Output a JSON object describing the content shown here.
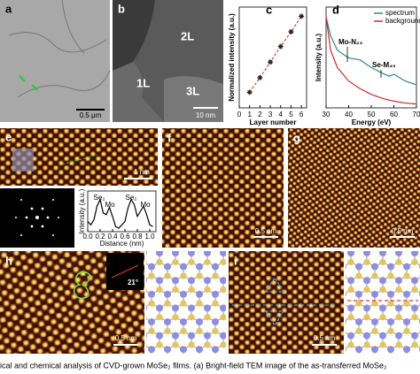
{
  "panels": [
    {
      "label": "a",
      "scale_bar": "0.5 μm"
    },
    {
      "label": "b",
      "scale_bar": "10 nm",
      "regions": [
        "2L",
        "1L",
        "3L"
      ]
    },
    {
      "label": "c"
    },
    {
      "label": "d"
    },
    {
      "label": "e",
      "scale_bar": "1 nm"
    },
    {
      "label": "f",
      "scale_bar": "0.5 nm"
    },
    {
      "label": "g",
      "scale_bar": "0.5 nm"
    },
    {
      "label": "h",
      "scale_bar": "0.5 nm",
      "angle": "21°"
    },
    {
      "label": "i",
      "scale_bar": "0.5 nm"
    }
  ],
  "chart_data": [
    {
      "type": "scatter",
      "xlabel": "Layer number",
      "ylabel": "Normalized intensity (a.u.)",
      "x": [
        1,
        2,
        3,
        4,
        5,
        6
      ],
      "values": [
        0.17,
        0.33,
        0.5,
        0.67,
        0.83,
        1.0
      ],
      "color": "#222222",
      "fit_color": "#d62728",
      "xlim": [
        0,
        6.5
      ],
      "xticks": [
        0,
        1,
        2,
        3,
        4,
        5,
        6
      ],
      "ylim": [
        0,
        1.1
      ]
    },
    {
      "type": "line",
      "xlabel": "Energy (eV)",
      "ylabel": "Intensity (a.u.)",
      "x": [
        30,
        32,
        35,
        40,
        45,
        50,
        55,
        58,
        60,
        65,
        70
      ],
      "series": [
        {
          "name": "spectrum",
          "color": "#2a8a8a",
          "values": [
            0.95,
            0.75,
            0.6,
            0.52,
            0.5,
            0.42,
            0.36,
            0.33,
            0.35,
            0.28,
            0.24
          ]
        },
        {
          "name": "background",
          "color": "#d62728",
          "values": [
            0.95,
            0.6,
            0.42,
            0.28,
            0.2,
            0.14,
            0.1,
            0.08,
            0.07,
            0.05,
            0.04
          ]
        }
      ],
      "xlim": [
        30,
        70
      ],
      "xticks": [
        30,
        40,
        50,
        60,
        70
      ],
      "ylim": [
        0,
        1.05
      ],
      "legend": "upper right",
      "annotations": [
        "Mo-N₂₃",
        "Se-M₄₅"
      ]
    },
    {
      "type": "line",
      "xlabel": "Distance (nm)",
      "ylabel": "Intensity (a.u.)",
      "x": [
        0,
        0.05,
        0.1,
        0.15,
        0.2,
        0.25,
        0.3,
        0.35,
        0.4,
        0.45,
        0.5,
        0.55,
        0.6,
        0.65,
        0.7,
        0.75,
        0.8,
        0.85,
        0.9,
        0.95,
        1.0,
        1.05
      ],
      "series": [
        {
          "color": "#000000",
          "values": [
            0.3,
            0.2,
            0.35,
            0.75,
            0.95,
            0.55,
            0.5,
            0.72,
            0.45,
            0.15,
            0.1,
            0.2,
            0.3,
            0.7,
            0.95,
            0.8,
            0.45,
            0.6,
            0.75,
            0.5,
            0.2,
            0.15
          ]
        }
      ],
      "xlim": [
        0,
        1.1
      ],
      "xticks": [
        {
          "value": 0,
          "label": "0.0"
        },
        {
          "value": 0.2,
          "label": "0.2"
        },
        {
          "value": 0.4,
          "label": "0.4"
        },
        {
          "value": 0.6,
          "label": "0.6"
        },
        {
          "value": 0.8,
          "label": "0.8"
        },
        {
          "value": 1,
          "label": "1.0"
        }
      ],
      "ylim": [
        0,
        1.2
      ],
      "annotations": [
        "Se₂",
        "Mo",
        "Se₂",
        "Mo"
      ]
    }
  ],
  "caption": "ical and chemical analysis of CVD-grown MoSe₂ films. (a) Bright-field TEM image of the as-transferred MoSe₂"
}
